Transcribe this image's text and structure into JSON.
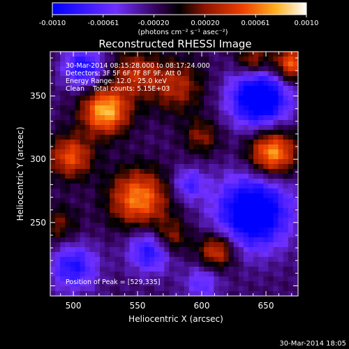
{
  "chart_data": {
    "type": "heatmap",
    "title": "Reconstructed RHESSI Image",
    "xlabel": "Heliocentric X (arcsec)",
    "ylabel": "Heliocentric Y (arcsec)",
    "xlim": [
      482,
      675
    ],
    "ylim": [
      192,
      385
    ],
    "x_ticks": [
      500,
      550,
      600,
      650
    ],
    "y_ticks": [
      250,
      300,
      350
    ],
    "colorbar": {
      "ticks": [
        "-0.0010",
        "-0.00061",
        "-0.00020",
        "0.00020",
        "0.00061",
        "0.0010"
      ],
      "units": "(photons cm⁻² s⁻¹ asec⁻²)",
      "range": [
        -0.001,
        0.001
      ]
    },
    "annotations": [
      "30-Mar-2014 08:15:28.000 to 08:17:24.000",
      "Detectors: 3F 5F 6F 7F 8F 9F, Att 0",
      "Energy Range: 12.0 - 25.0 keV",
      "Clean    Total counts: 5.15E+03"
    ],
    "peak_label": "Position of Peak = [529,335]",
    "grid": false,
    "sources": [
      {
        "x": 525,
        "y": 338,
        "sigma": 13,
        "amp": 0.001
      },
      {
        "x": 498,
        "y": 302,
        "sigma": 12,
        "amp": 0.0007
      },
      {
        "x": 551,
        "y": 269,
        "sigma": 16,
        "amp": 0.00085
      },
      {
        "x": 575,
        "y": 238,
        "sigma": 10,
        "amp": 0.0005
      },
      {
        "x": 612,
        "y": 228,
        "sigma": 10,
        "amp": 0.0007
      },
      {
        "x": 655,
        "y": 305,
        "sigma": 13,
        "amp": 0.00095
      },
      {
        "x": 580,
        "y": 358,
        "sigma": 15,
        "amp": 0.0005
      },
      {
        "x": 548,
        "y": 368,
        "sigma": 13,
        "amp": 0.0005
      },
      {
        "x": 600,
        "y": 318,
        "sigma": 10,
        "amp": 0.0004
      },
      {
        "x": 670,
        "y": 375,
        "sigma": 10,
        "amp": 0.0008
      },
      {
        "x": 640,
        "y": 378,
        "sigma": 9,
        "amp": 0.00055
      },
      {
        "x": 488,
        "y": 248,
        "sigma": 11,
        "amp": 0.00035
      },
      {
        "x": 560,
        "y": 228,
        "sigma": 12,
        "amp": -0.0007
      },
      {
        "x": 640,
        "y": 258,
        "sigma": 20,
        "amp": -0.0011
      },
      {
        "x": 500,
        "y": 215,
        "sigma": 13,
        "amp": -0.00065
      },
      {
        "x": 508,
        "y": 372,
        "sigma": 11,
        "amp": -0.0007
      },
      {
        "x": 645,
        "y": 348,
        "sigma": 16,
        "amp": -0.0011
      },
      {
        "x": 590,
        "y": 280,
        "sigma": 9,
        "amp": -0.0005
      },
      {
        "x": 600,
        "y": 202,
        "sigma": 10,
        "amp": -0.0004
      }
    ]
  },
  "footer": {
    "timestamp": "30-Mar-2014 18:05"
  }
}
